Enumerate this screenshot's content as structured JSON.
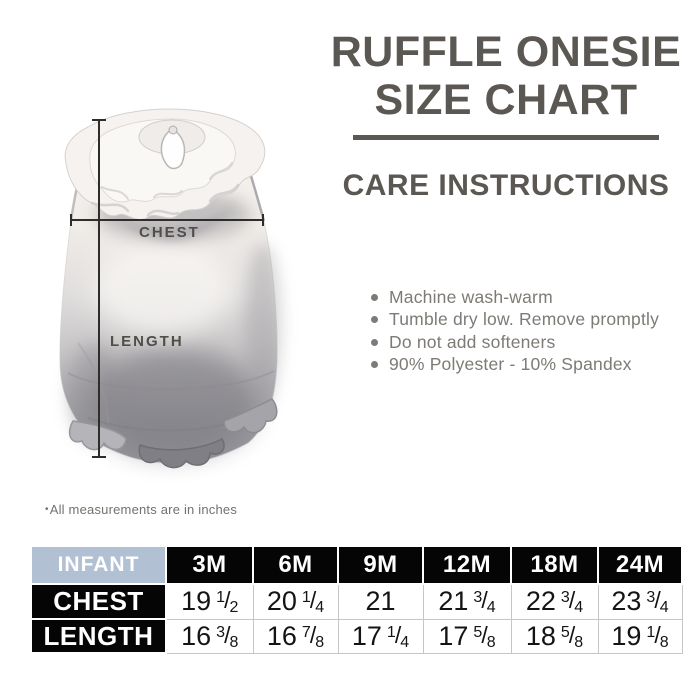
{
  "title": {
    "line1": "RUFFLE ONESIE",
    "line2": "SIZE CHART"
  },
  "care": {
    "heading": "CARE INSTRUCTIONS",
    "items": [
      "Machine wash-warm",
      "Tumble dry low. Remove promptly",
      "Do not add softeners",
      "90% Polyester - 10% Spandex"
    ]
  },
  "figure": {
    "chest_label": "CHEST",
    "length_label": "LENGTH"
  },
  "note": {
    "marker": "•",
    "text": "All measurements are in inches"
  },
  "size_table": {
    "header": [
      "INFANT",
      "3M",
      "6M",
      "9M",
      "12M",
      "18M",
      "24M"
    ],
    "rows": [
      {
        "label": "CHEST",
        "values": [
          "19 1/2",
          "20 1/4",
          "21",
          "21 3/4",
          "22 3/4",
          "23 3/4"
        ]
      },
      {
        "label": "LENGTH",
        "values": [
          "16 3/8",
          "16 7/8",
          "17 1/4",
          "17 5/8",
          "18 5/8",
          "19 1/8"
        ]
      }
    ]
  },
  "colors": {
    "heading_gray": "#5b5753",
    "care_text_gray": "#7e7a75",
    "table_black": "#050505",
    "infant_header_bg": "#b2c0d3",
    "grid_gray": "#c6c6c6",
    "measure_line": "#2e2d2b"
  }
}
